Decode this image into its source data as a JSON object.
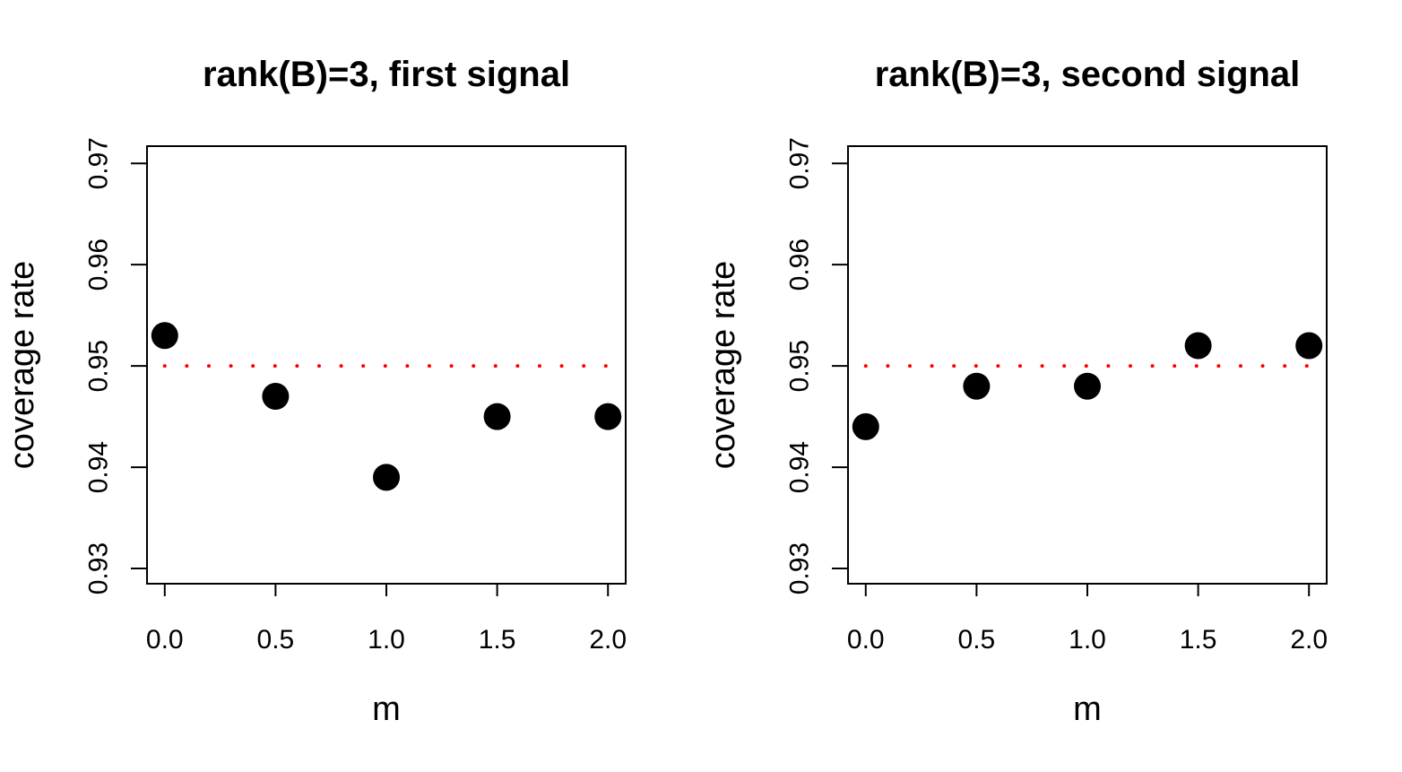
{
  "chart_data": [
    {
      "type": "scatter",
      "title": "rank(B)=3, first signal",
      "xlabel": "m",
      "ylabel": "coverage rate",
      "x": [
        0.0,
        0.5,
        1.0,
        1.5,
        2.0
      ],
      "series": [
        {
          "values": [
            0.953,
            0.947,
            0.939,
            0.945,
            0.945
          ],
          "color": "#000000"
        }
      ],
      "reference_line": {
        "y": 0.95,
        "style": "dotted",
        "color": "#ff0000"
      },
      "xticks": [
        "0.0",
        "0.5",
        "1.0",
        "1.5",
        "2.0"
      ],
      "yticks": [
        "0.93",
        "0.94",
        "0.95",
        "0.96",
        "0.97"
      ],
      "xlim": [
        -0.08,
        2.08
      ],
      "ylim": [
        0.9285,
        0.9717
      ],
      "grid": false
    },
    {
      "type": "scatter",
      "title": "rank(B)=3, second signal",
      "xlabel": "m",
      "ylabel": "coverage rate",
      "x": [
        0.0,
        0.5,
        1.0,
        1.5,
        2.0
      ],
      "series": [
        {
          "values": [
            0.944,
            0.948,
            0.948,
            0.952,
            0.952
          ],
          "color": "#000000"
        }
      ],
      "reference_line": {
        "y": 0.95,
        "style": "dotted",
        "color": "#ff0000"
      },
      "xticks": [
        "0.0",
        "0.5",
        "1.0",
        "1.5",
        "2.0"
      ],
      "yticks": [
        "0.93",
        "0.94",
        "0.95",
        "0.96",
        "0.97"
      ],
      "xlim": [
        -0.08,
        2.08
      ],
      "ylim": [
        0.9285,
        0.9717
      ],
      "grid": false
    }
  ]
}
